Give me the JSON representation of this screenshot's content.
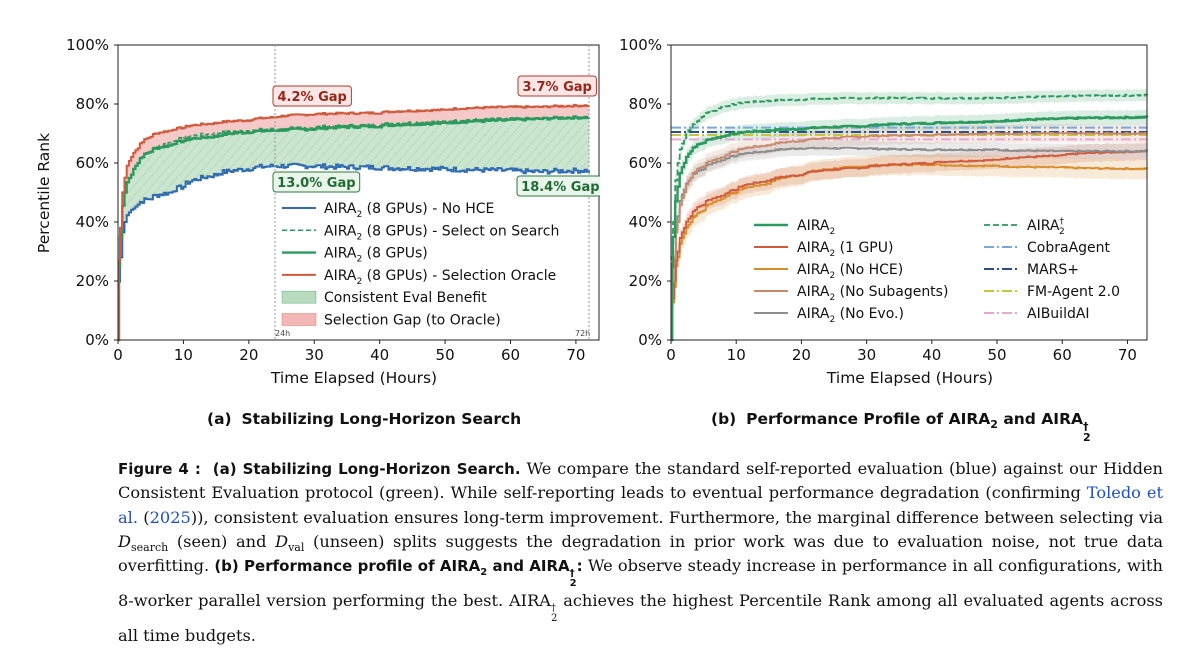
{
  "colors": {
    "blue": "#2f6bb0",
    "green": "#2c9a5e",
    "green_fill": "#b9dcbf",
    "red": "#cf5a3c",
    "red_fill": "#f3b7b7",
    "orange": "#d98c2a",
    "salmon": "#c98a6c",
    "gray": "#8c8c8c",
    "sky": "#78a8dc",
    "navy": "#2a4d8f",
    "yellow": "#c9c440",
    "pink": "#e4a8d2"
  },
  "panel_a": {
    "subtitle_prefix": "(a)",
    "subtitle": "Stabilizing Long-Horizon Search",
    "ylabel": "Percentile Rank",
    "xlabel": "Time Elapsed (Hours)",
    "xticks": [
      "0",
      "10",
      "20",
      "30",
      "40",
      "50",
      "60",
      "70"
    ],
    "yticks": [
      "0%",
      "20%",
      "40%",
      "60%",
      "80%",
      "100%"
    ],
    "vline_labels": [
      "24h",
      "72h"
    ],
    "gap_badges": [
      {
        "text": "4.2% Gap",
        "kind": "red"
      },
      {
        "text": "3.7% Gap",
        "kind": "red"
      },
      {
        "text": "13.0% Gap",
        "kind": "green"
      },
      {
        "text": "18.4% Gap",
        "kind": "green"
      }
    ],
    "legend": [
      {
        "base": "AIRA",
        "sub": "2",
        "rest": " (8 GPUs) - No HCE"
      },
      {
        "base": "AIRA",
        "sub": "2",
        "rest": " (8 GPUs) - Select on Search"
      },
      {
        "base": "AIRA",
        "sub": "2",
        "rest": " (8 GPUs)"
      },
      {
        "base": "AIRA",
        "sub": "2",
        "rest": " (8 GPUs) - Selection Oracle"
      },
      {
        "base": "Consistent Eval Benefit",
        "sub": "",
        "rest": ""
      },
      {
        "base": "Selection Gap (to Oracle)",
        "sub": "",
        "rest": ""
      }
    ]
  },
  "panel_b": {
    "subtitle_prefix": "(b)",
    "subtitle_main": "Performance Profile of AIRA",
    "subtitle_sub": "2",
    "subtitle_and": " and AIRA",
    "subtitle_sup": "†",
    "subtitle_sub2": "2",
    "xlabel": "Time Elapsed (Hours)",
    "xticks": [
      "0",
      "10",
      "20",
      "30",
      "40",
      "50",
      "60",
      "70"
    ],
    "yticks": [
      "0%",
      "20%",
      "40%",
      "60%",
      "80%",
      "100%"
    ],
    "legend_left": [
      {
        "base": "AIRA",
        "sub": "2",
        "rest": ""
      },
      {
        "base": "AIRA",
        "sub": "2",
        "rest": " (1 GPU)"
      },
      {
        "base": "AIRA",
        "sub": "2",
        "rest": " (No HCE)"
      },
      {
        "base": "AIRA",
        "sub": "2",
        "rest": " (No Subagents)"
      },
      {
        "base": "AIRA",
        "sub": "2",
        "rest": " (No Evo.)"
      }
    ],
    "legend_right": [
      {
        "base": "AIRA",
        "sub": "2",
        "sup": "†",
        "rest": ""
      },
      {
        "base": "CobraAgent",
        "sub": "",
        "sup": "",
        "rest": ""
      },
      {
        "base": "MARS+",
        "sub": "",
        "sup": "",
        "rest": ""
      },
      {
        "base": "FM-Agent 2.0",
        "sub": "",
        "sup": "",
        "rest": ""
      },
      {
        "base": "AIBuildAI",
        "sub": "",
        "sup": "",
        "rest": ""
      }
    ]
  },
  "chart_data": [
    {
      "type": "line",
      "title": "",
      "xlabel": "Time Elapsed (Hours)",
      "ylabel": "Percentile Rank",
      "xlim": [
        0,
        72
      ],
      "ylim": [
        0,
        100
      ],
      "grid": false,
      "legend": "lower-right",
      "series": [
        {
          "name": "AIRA2 (8 GPUs) - No HCE",
          "color": "blue",
          "x": [
            0,
            0.3,
            1,
            2,
            3,
            5,
            8,
            10,
            15,
            20,
            24,
            30,
            40,
            50,
            60,
            65,
            72
          ],
          "y": [
            0,
            28,
            40,
            44,
            46,
            48,
            50,
            52,
            56,
            58,
            59,
            59,
            58.5,
            58,
            57.5,
            57,
            57.5
          ]
        },
        {
          "name": "AIRA2 (8 GPUs) - Select on Search",
          "color": "green",
          "dashed": true,
          "x": [
            0,
            0.3,
            1,
            2,
            3,
            5,
            8,
            10,
            15,
            20,
            24,
            30,
            40,
            50,
            60,
            65,
            72
          ],
          "y": [
            0,
            35,
            50,
            56,
            60,
            64,
            67,
            68.5,
            70,
            71,
            71.5,
            72,
            73,
            74,
            75,
            75,
            75.5
          ]
        },
        {
          "name": "AIRA2 (8 GPUs)",
          "color": "green",
          "x": [
            0,
            0.3,
            1,
            2,
            3,
            5,
            8,
            10,
            15,
            20,
            24,
            30,
            40,
            50,
            60,
            65,
            72
          ],
          "y": [
            0,
            35,
            50,
            56,
            60,
            64,
            66,
            67.5,
            69,
            70.5,
            71,
            71.5,
            72.5,
            73.5,
            74.5,
            75,
            75.5
          ]
        },
        {
          "name": "AIRA2 (8 GPUs) - Selection Oracle",
          "color": "red",
          "x": [
            0,
            0.3,
            1,
            2,
            3,
            5,
            8,
            10,
            15,
            20,
            24,
            30,
            40,
            50,
            60,
            65,
            72
          ],
          "y": [
            0,
            38,
            55,
            62,
            65,
            69,
            71,
            72,
            73.5,
            74.5,
            75.5,
            76.5,
            77,
            78,
            79,
            79,
            79.5
          ]
        }
      ]
    },
    {
      "type": "line",
      "title": "",
      "xlabel": "Time Elapsed (Hours)",
      "ylabel": "",
      "xlim": [
        0,
        73
      ],
      "ylim": [
        0,
        100
      ],
      "grid": false,
      "legend": "lower-right",
      "series": [
        {
          "name": "AIRA2",
          "color": "green",
          "x": [
            0,
            0.3,
            1,
            2,
            3,
            5,
            8,
            10,
            15,
            20,
            30,
            40,
            50,
            60,
            73
          ],
          "y": [
            0,
            35,
            52,
            60,
            64,
            67,
            69,
            70,
            71,
            71.5,
            72.5,
            73.5,
            74,
            75,
            75.5
          ]
        },
        {
          "name": "AIRA2 (1 GPU)",
          "color": "red",
          "x": [
            0,
            0.5,
            1,
            2,
            3,
            5,
            8,
            10,
            15,
            20,
            30,
            40,
            50,
            60,
            73
          ],
          "y": [
            0,
            20,
            30,
            38,
            42,
            46,
            49,
            51,
            54,
            56,
            58.5,
            60,
            61,
            62.5,
            64
          ]
        },
        {
          "name": "AIRA2 (No HCE)",
          "color": "orange",
          "x": [
            0,
            0.5,
            1,
            2,
            3,
            5,
            8,
            10,
            15,
            20,
            30,
            40,
            50,
            60,
            73
          ],
          "y": [
            0,
            18,
            28,
            36,
            40,
            44,
            48,
            50,
            53,
            56,
            59,
            59.5,
            59,
            58.5,
            58
          ]
        },
        {
          "name": "AIRA2 (No Subagents)",
          "color": "salmon",
          "x": [
            0,
            0.5,
            1,
            2,
            3,
            5,
            8,
            10,
            15,
            20,
            30,
            40,
            50,
            60,
            73
          ],
          "y": [
            0,
            28,
            40,
            50,
            55,
            59,
            62,
            64,
            66,
            67.5,
            69,
            69.5,
            70,
            70,
            70
          ]
        },
        {
          "name": "AIRA2 (No Evo.)",
          "color": "gray",
          "x": [
            0,
            0.5,
            1,
            2,
            3,
            5,
            8,
            10,
            15,
            20,
            30,
            40,
            50,
            60,
            73
          ],
          "y": [
            0,
            28,
            42,
            51,
            55,
            58,
            61,
            62.5,
            64,
            65,
            65,
            64.5,
            64.5,
            64,
            64
          ]
        },
        {
          "name": "AIRA2†",
          "color": "green",
          "dashed": true,
          "x": [
            0,
            0.3,
            1,
            2,
            3,
            4,
            5,
            7,
            10,
            15,
            20,
            30,
            40,
            50,
            60,
            73
          ],
          "y": [
            0,
            40,
            60,
            68,
            72,
            74,
            76,
            78,
            80,
            81,
            81.5,
            82,
            82,
            82,
            82.5,
            83
          ]
        },
        {
          "name": "CobraAgent",
          "color": "sky",
          "constant": true,
          "x": [
            0,
            73
          ],
          "y": [
            72,
            72
          ]
        },
        {
          "name": "MARS+",
          "color": "navy",
          "constant": true,
          "x": [
            0,
            73
          ],
          "y": [
            70.5,
            70.5
          ]
        },
        {
          "name": "FM-Agent 2.0",
          "color": "yellow",
          "constant": true,
          "x": [
            0,
            73
          ],
          "y": [
            69.5,
            69.5
          ]
        },
        {
          "name": "AIBuildAI",
          "color": "pink",
          "constant": true,
          "x": [
            0,
            73
          ],
          "y": [
            68,
            68
          ]
        }
      ]
    }
  ],
  "caption": {
    "fig_label": "Figure 4 :",
    "a_label": "(a) Stabilizing Long-Horizon Search.",
    "t1": " We compare the standard self-reported evaluation (blue) against our Hidden Consistent Evaluation protocol (green). While self-reporting leads to eventual performance degradation (confirming ",
    "cite_name": "Toledo et al.",
    "cite_open": " (",
    "cite_year": "2025",
    "cite_close": ")), consistent evaluation ensures long-term improvement. Furthermore, the marginal difference between selecting via ",
    "d_symbol": "D",
    "d_search": "search",
    "t_seen": " (seen) and ",
    "d_val": "val",
    "t_rest": " (unseen) splits suggests the degradation in prior work was due to evaluation noise, not true data overfitting. ",
    "b_label": "(b) Performance profile of AIRA",
    "b_sub": "2",
    "b_and": " and AIRA",
    "b_sup": "†",
    "b_sub2": "2",
    "b_colon": ":",
    "t2": " We observe steady increase in performance in all configurations, with 8-worker parallel version performing the best. ",
    "aira": "AIRA",
    "t3": " achieves the highest Percentile Rank among all evaluated agents across all time budgets."
  }
}
